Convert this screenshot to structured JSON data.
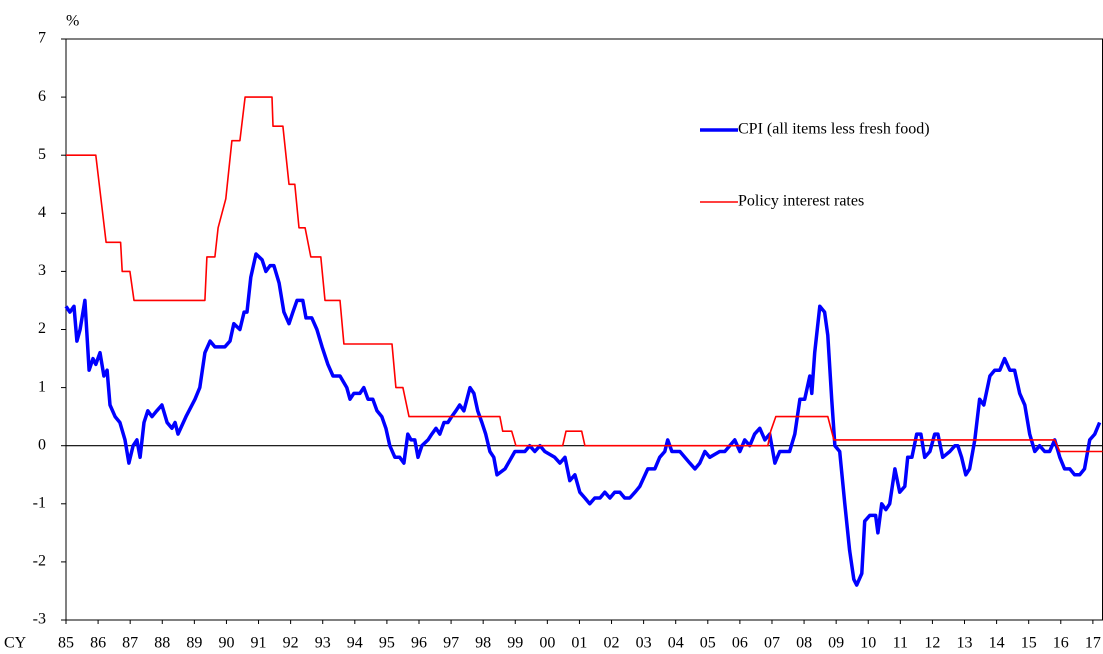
{
  "chart_data": {
    "type": "line",
    "y_label": "%",
    "x_label": "CY",
    "xlim": [
      1985,
      2017.3
    ],
    "ylim": [
      -3,
      7
    ],
    "yticks": [
      7,
      6,
      5,
      4,
      3,
      2,
      1,
      0,
      -1,
      -2,
      -3
    ],
    "xticks": [
      {
        "value": 1985,
        "label": "85"
      },
      {
        "value": 1986,
        "label": "86"
      },
      {
        "value": 1987,
        "label": "87"
      },
      {
        "value": 1988,
        "label": "88"
      },
      {
        "value": 1989,
        "label": "89"
      },
      {
        "value": 1990,
        "label": "90"
      },
      {
        "value": 1991,
        "label": "91"
      },
      {
        "value": 1992,
        "label": "92"
      },
      {
        "value": 1993,
        "label": "93"
      },
      {
        "value": 1994,
        "label": "94"
      },
      {
        "value": 1995,
        "label": "95"
      },
      {
        "value": 1996,
        "label": "96"
      },
      {
        "value": 1997,
        "label": "97"
      },
      {
        "value": 1998,
        "label": "98"
      },
      {
        "value": 1999,
        "label": "99"
      },
      {
        "value": 2000,
        "label": "00"
      },
      {
        "value": 2001,
        "label": "01"
      },
      {
        "value": 2002,
        "label": "02"
      },
      {
        "value": 2003,
        "label": "03"
      },
      {
        "value": 2004,
        "label": "04"
      },
      {
        "value": 2005,
        "label": "05"
      },
      {
        "value": 2006,
        "label": "06"
      },
      {
        "value": 2007,
        "label": "07"
      },
      {
        "value": 2008,
        "label": "08"
      },
      {
        "value": 2009,
        "label": "09"
      },
      {
        "value": 2010,
        "label": "10"
      },
      {
        "value": 2011,
        "label": "11"
      },
      {
        "value": 2012,
        "label": "12"
      },
      {
        "value": 2013,
        "label": "13"
      },
      {
        "value": 2014,
        "label": "14"
      },
      {
        "value": 2015,
        "label": "15"
      },
      {
        "value": 2016,
        "label": "16"
      },
      {
        "value": 2017,
        "label": "17"
      }
    ],
    "zero_line": true,
    "legend": "right",
    "series": [
      {
        "name": "CPI (all items less fresh food)",
        "color": "#0000ff",
        "width": 3.5,
        "x": [
          1985,
          1985.12,
          1985.25,
          1985.34,
          1985.44,
          1985.59,
          1985.72,
          1985.84,
          1985.93,
          1986.06,
          1986.18,
          1986.28,
          1986.37,
          1986.53,
          1986.68,
          1986.84,
          1986.96,
          1987.09,
          1987.21,
          1987.31,
          1987.43,
          1987.55,
          1987.68,
          1987.83,
          1987.99,
          1988.15,
          1988.3,
          1988.4,
          1988.49,
          1988.74,
          1989.02,
          1989.17,
          1989.33,
          1989.49,
          1989.64,
          1989.95,
          1990.11,
          1990.23,
          1990.42,
          1990.55,
          1990.64,
          1990.76,
          1990.92,
          1991.11,
          1991.23,
          1991.36,
          1991.48,
          1991.64,
          1991.79,
          1991.95,
          1992.07,
          1992.2,
          1992.38,
          1992.48,
          1992.66,
          1992.82,
          1992.98,
          1993.16,
          1993.32,
          1993.54,
          1993.75,
          1993.85,
          1993.97,
          1994.16,
          1994.28,
          1994.41,
          1994.56,
          1994.69,
          1994.84,
          1994.97,
          1995.09,
          1995.25,
          1995.4,
          1995.53,
          1995.65,
          1995.75,
          1995.87,
          1995.97,
          1996.09,
          1996.28,
          1996.4,
          1996.53,
          1996.65,
          1996.78,
          1996.9,
          1997.02,
          1997.15,
          1997.27,
          1997.4,
          1997.59,
          1997.71,
          1997.83,
          1997.96,
          1998.08,
          1998.21,
          1998.33,
          1998.43,
          1998.68,
          1998.99,
          1999.3,
          1999.45,
          1999.61,
          1999.77,
          1999.92,
          2000.23,
          2000.39,
          2000.55,
          2000.7,
          2000.86,
          2001.01,
          2001.17,
          2001.32,
          2001.48,
          2001.64,
          2001.79,
          2001.95,
          2002.1,
          2002.26,
          2002.41,
          2002.57,
          2002.73,
          2002.88,
          2003.13,
          2003.35,
          2003.5,
          2003.66,
          2003.75,
          2003.88,
          2004.13,
          2004.44,
          2004.6,
          2004.75,
          2004.91,
          2005.06,
          2005.37,
          2005.53,
          2005.84,
          2006,
          2006.15,
          2006.31,
          2006.46,
          2006.62,
          2006.78,
          2006.93,
          2007.09,
          2007.24,
          2007.55,
          2007.71,
          2007.87,
          2008.02,
          2008.18,
          2008.24,
          2008.33,
          2008.49,
          2008.64,
          2008.74,
          2008.86,
          2008.96,
          2009.11,
          2009.27,
          2009.42,
          2009.55,
          2009.64,
          2009.8,
          2009.89,
          2010.05,
          2010.23,
          2010.3,
          2010.42,
          2010.55,
          2010.67,
          2010.83,
          2010.98,
          2011.14,
          2011.23,
          2011.36,
          2011.51,
          2011.64,
          2011.76,
          2011.92,
          2012.07,
          2012.17,
          2012.32,
          2012.54,
          2012.7,
          2012.79,
          2012.91,
          2013.04,
          2013.16,
          2013.32,
          2013.47,
          2013.6,
          2013.79,
          2013.94,
          2014.1,
          2014.25,
          2014.41,
          2014.56,
          2014.72,
          2014.88,
          2015.03,
          2015.19,
          2015.34,
          2015.5,
          2015.65,
          2015.81,
          2015.97,
          2016.12,
          2016.28,
          2016.43,
          2016.59,
          2016.74,
          2016.9,
          2017.06,
          2017.21
        ],
        "values": [
          2.4,
          2.3,
          2.4,
          1.8,
          2.0,
          2.5,
          1.3,
          1.5,
          1.4,
          1.6,
          1.2,
          1.3,
          0.7,
          0.5,
          0.4,
          0.1,
          -0.3,
          0.0,
          0.1,
          -0.2,
          0.4,
          0.6,
          0.5,
          0.6,
          0.7,
          0.4,
          0.3,
          0.4,
          0.2,
          0.5,
          0.8,
          1.0,
          1.6,
          1.8,
          1.7,
          1.7,
          1.8,
          2.1,
          2.0,
          2.3,
          2.3,
          2.9,
          3.3,
          3.2,
          3.0,
          3.1,
          3.1,
          2.8,
          2.3,
          2.1,
          2.3,
          2.5,
          2.5,
          2.2,
          2.2,
          2.0,
          1.7,
          1.4,
          1.2,
          1.2,
          1.0,
          0.8,
          0.9,
          0.9,
          1.0,
          0.8,
          0.8,
          0.6,
          0.5,
          0.3,
          0.0,
          -0.2,
          -0.2,
          -0.3,
          0.2,
          0.1,
          0.1,
          -0.2,
          0.0,
          0.1,
          0.2,
          0.3,
          0.2,
          0.4,
          0.4,
          0.5,
          0.6,
          0.7,
          0.6,
          1.0,
          0.9,
          0.6,
          0.4,
          0.2,
          -0.1,
          -0.2,
          -0.5,
          -0.4,
          -0.1,
          -0.1,
          0.0,
          -0.1,
          0.0,
          -0.1,
          -0.2,
          -0.3,
          -0.2,
          -0.6,
          -0.5,
          -0.8,
          -0.9,
          -1.0,
          -0.9,
          -0.9,
          -0.8,
          -0.9,
          -0.8,
          -0.8,
          -0.9,
          -0.9,
          -0.8,
          -0.7,
          -0.4,
          -0.4,
          -0.2,
          -0.1,
          0.1,
          -0.1,
          -0.1,
          -0.3,
          -0.4,
          -0.3,
          -0.1,
          -0.2,
          -0.1,
          -0.1,
          0.1,
          -0.1,
          0.1,
          0.0,
          0.2,
          0.3,
          0.1,
          0.2,
          -0.3,
          -0.1,
          -0.1,
          0.2,
          0.8,
          0.8,
          1.2,
          0.9,
          1.6,
          2.4,
          2.3,
          1.9,
          0.8,
          0.0,
          -0.1,
          -1.0,
          -1.8,
          -2.3,
          -2.4,
          -2.2,
          -1.3,
          -1.2,
          -1.2,
          -1.5,
          -1.0,
          -1.1,
          -1.0,
          -0.4,
          -0.8,
          -0.7,
          -0.2,
          -0.2,
          0.2,
          0.2,
          -0.2,
          -0.1,
          0.2,
          0.2,
          -0.2,
          -0.1,
          0.0,
          0.0,
          -0.2,
          -0.5,
          -0.4,
          0.1,
          0.8,
          0.7,
          1.2,
          1.3,
          1.3,
          1.5,
          1.3,
          1.3,
          0.9,
          0.7,
          0.2,
          -0.1,
          0.0,
          -0.1,
          -0.1,
          0.1,
          -0.2,
          -0.4,
          -0.4,
          -0.5,
          -0.5,
          -0.4,
          0.1,
          0.2,
          0.4
        ]
      },
      {
        "name": "Policy interest rates",
        "color": "#ff0000",
        "width": 1.6,
        "x": [
          1985,
          1985.93,
          1986.25,
          1986.7,
          1986.75,
          1986.99,
          1987.12,
          1989.33,
          1989.39,
          1989.64,
          1989.74,
          1989.98,
          1990.17,
          1990.42,
          1990.58,
          1991.42,
          1991.45,
          1991.76,
          1991.95,
          1992.13,
          1992.26,
          1992.45,
          1992.63,
          1992.94,
          1993.07,
          1993.54,
          1993.66,
          1995.16,
          1995.28,
          1995.5,
          1995.69,
          1998.52,
          1998.61,
          1998.89,
          1999.02,
          2000.48,
          2000.58,
          2001.07,
          2001.17,
          2006.87,
          2006.96,
          2007.12,
          2008.74,
          2008.93,
          2015.81,
          2015.97,
          2017.3
        ],
        "values": [
          5,
          5,
          3.5,
          3.5,
          3,
          3,
          2.5,
          2.5,
          3.25,
          3.25,
          3.75,
          4.25,
          5.25,
          5.25,
          6,
          6,
          5.5,
          5.5,
          4.5,
          4.5,
          3.75,
          3.75,
          3.25,
          3.25,
          2.5,
          2.5,
          1.75,
          1.75,
          1,
          1,
          0.5,
          0.5,
          0.25,
          0.25,
          0,
          0,
          0.25,
          0.25,
          0,
          0,
          0.25,
          0.5,
          0.5,
          0.1,
          0.1,
          -0.1,
          -0.1
        ]
      }
    ]
  }
}
